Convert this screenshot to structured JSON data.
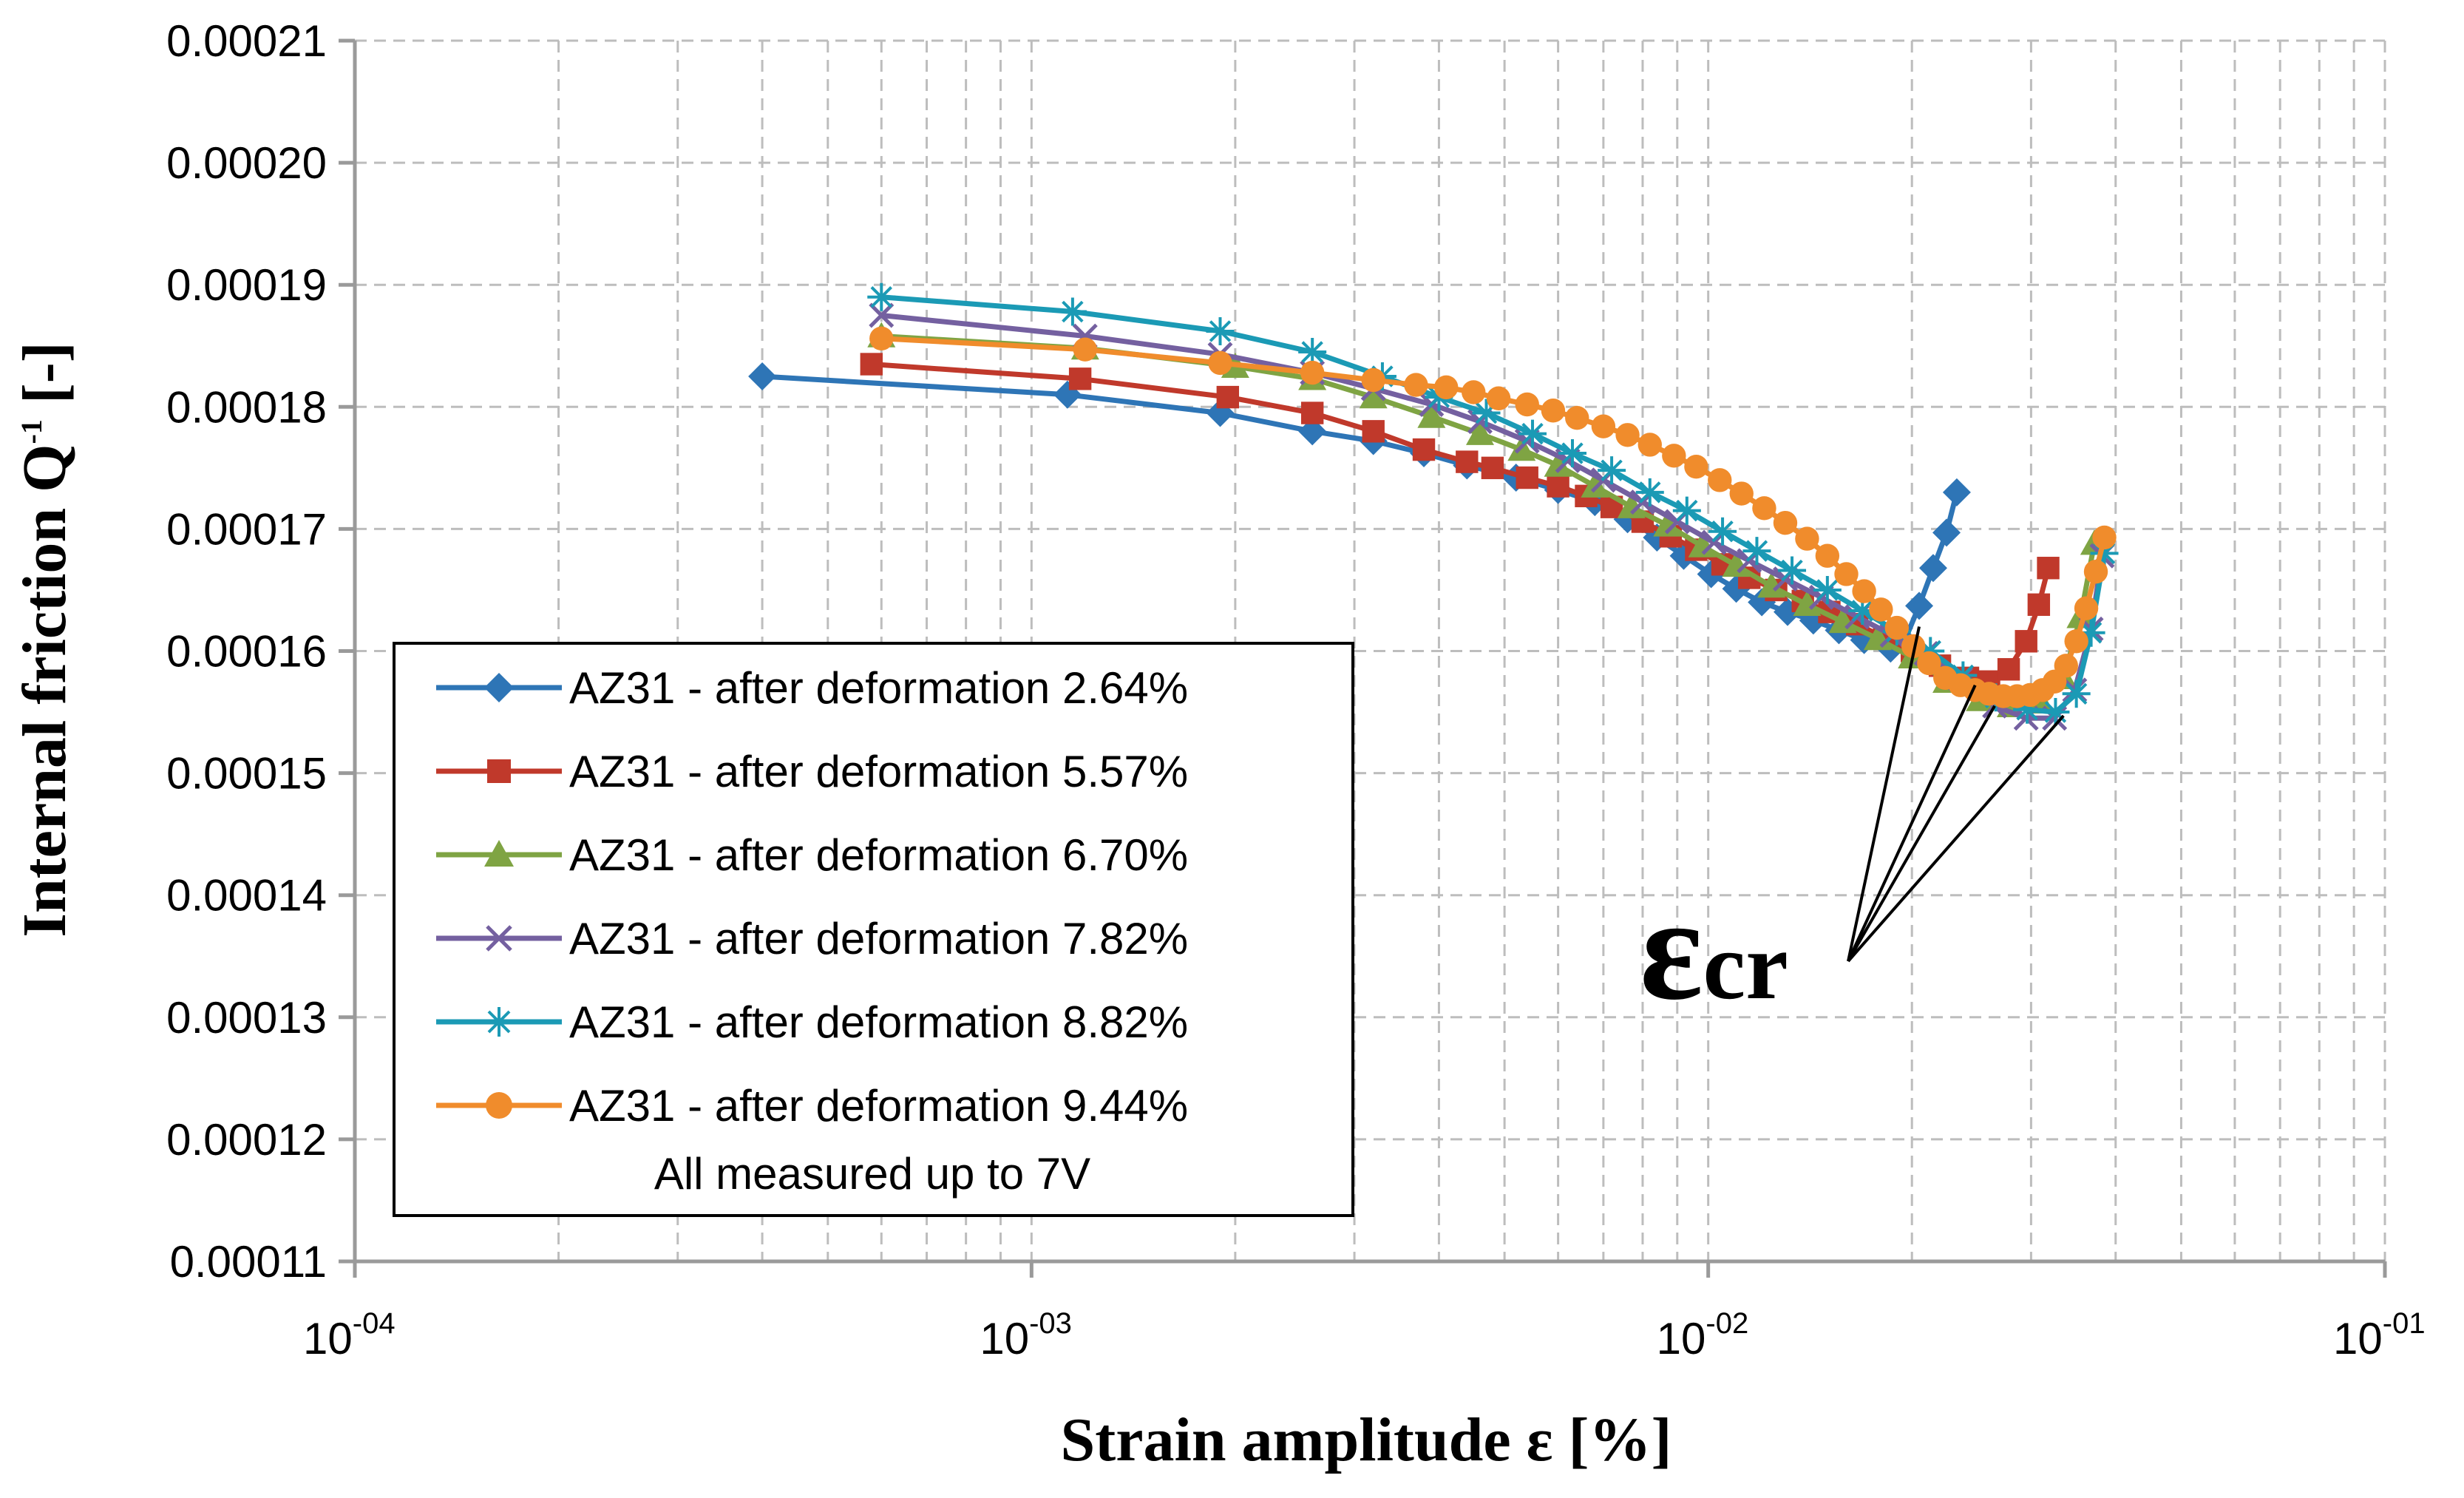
{
  "chart_data": {
    "type": "line",
    "x_scale": "log",
    "xlabel": "Strain amplitude ε [%]",
    "ylabel": "Internal friction Q",
    "ylabel_sup": "-1",
    "ylabel_suffix": " [-]",
    "xlim": [
      0.0001,
      0.1
    ],
    "ylim": [
      0.00011,
      0.00021
    ],
    "y_ticks": [
      "0.00011",
      "0.00012",
      "0.00013",
      "0.00014",
      "0.00015",
      "0.00016",
      "0.00017",
      "0.00018",
      "0.00019",
      "0.00020",
      "0.00021"
    ],
    "x_ticks": [
      {
        "base": "10",
        "exp": "-04"
      },
      {
        "base": "10",
        "exp": "-03"
      },
      {
        "base": "10",
        "exp": "-02"
      },
      {
        "base": "10",
        "exp": "-01"
      }
    ],
    "grid": true,
    "legend_position": "lower-left",
    "legend_note": "All measured up to 7V",
    "annotation_main": "ε",
    "annotation_sub": "cr",
    "series": [
      {
        "name": "AZ31 - after deformation 2.64%",
        "color": "#2E75B6",
        "marker": "diamond",
        "x": [
          0.0004,
          0.00113,
          0.0019,
          0.0026,
          0.0032,
          0.0038,
          0.0044,
          0.0052,
          0.006,
          0.0068,
          0.0076,
          0.0084,
          0.0092,
          0.0101,
          0.011,
          0.012,
          0.0131,
          0.0143,
          0.0156,
          0.017,
          0.0186,
          0.0195,
          0.0205,
          0.0215,
          0.0225,
          0.0233
        ],
        "y": [
          0.0001825,
          0.000181,
          0.0001795,
          0.000178,
          0.0001772,
          0.0001762,
          0.0001752,
          0.0001742,
          0.0001732,
          0.0001722,
          0.0001708,
          0.0001693,
          0.0001678,
          0.0001663,
          0.0001651,
          0.000164,
          0.0001632,
          0.0001625,
          0.0001617,
          0.0001609,
          0.0001602,
          0.0001608,
          0.0001637,
          0.0001668,
          0.0001697,
          0.000173
        ]
      },
      {
        "name": "AZ31 - after deformation 5.57%",
        "color": "#C0392B",
        "marker": "square",
        "x": [
          0.00058,
          0.00118,
          0.00195,
          0.0026,
          0.0032,
          0.0038,
          0.0044,
          0.0048,
          0.0054,
          0.006,
          0.0066,
          0.0072,
          0.008,
          0.0088,
          0.0096,
          0.0105,
          0.0115,
          0.0126,
          0.0138,
          0.0151,
          0.0166,
          0.0182,
          0.02,
          0.022,
          0.0242,
          0.026,
          0.0278,
          0.0295,
          0.0308,
          0.0318
        ],
        "y": [
          0.0001835,
          0.0001823,
          0.0001808,
          0.0001795,
          0.000178,
          0.0001765,
          0.0001755,
          0.000175,
          0.0001742,
          0.0001735,
          0.0001727,
          0.0001718,
          0.0001706,
          0.0001694,
          0.0001683,
          0.0001671,
          0.000166,
          0.000165,
          0.0001641,
          0.0001632,
          0.0001622,
          0.0001611,
          0.00016,
          0.0001588,
          0.0001578,
          0.0001575,
          0.0001585,
          0.0001608,
          0.0001638,
          0.0001668
        ]
      },
      {
        "name": "AZ31 - after deformation 6.70%",
        "color": "#7FA443",
        "marker": "triangle",
        "x": [
          0.0006,
          0.0012,
          0.002,
          0.0026,
          0.0032,
          0.0039,
          0.0046,
          0.0053,
          0.006,
          0.0068,
          0.0077,
          0.0087,
          0.0098,
          0.011,
          0.0124,
          0.014,
          0.0158,
          0.0178,
          0.02,
          0.0225,
          0.0252,
          0.028,
          0.031,
          0.0335,
          0.0355,
          0.0372
        ],
        "y": [
          0.0001858,
          0.0001848,
          0.0001833,
          0.0001823,
          0.0001808,
          0.0001792,
          0.0001778,
          0.0001765,
          0.0001752,
          0.0001735,
          0.0001718,
          0.0001703,
          0.0001686,
          0.000167,
          0.0001653,
          0.0001638,
          0.0001624,
          0.000161,
          0.0001595,
          0.0001575,
          0.000156,
          0.0001555,
          0.0001558,
          0.0001578,
          0.0001628,
          0.0001688
        ]
      },
      {
        "name": "AZ31 - after deformation 7.82%",
        "color": "#7460A0",
        "marker": "x",
        "x": [
          0.0006,
          0.0012,
          0.0019,
          0.0026,
          0.0032,
          0.0039,
          0.0046,
          0.0054,
          0.0062,
          0.007,
          0.008,
          0.009,
          0.0102,
          0.0115,
          0.013,
          0.0147,
          0.0166,
          0.0187,
          0.021,
          0.0236,
          0.0265,
          0.0295,
          0.0325,
          0.0348,
          0.0368,
          0.0382
        ],
        "y": [
          0.0001875,
          0.0001858,
          0.0001843,
          0.0001828,
          0.0001815,
          0.0001802,
          0.0001788,
          0.0001772,
          0.0001756,
          0.000174,
          0.0001722,
          0.0001706,
          0.0001689,
          0.0001674,
          0.0001659,
          0.0001644,
          0.0001628,
          0.0001613,
          0.0001598,
          0.0001577,
          0.0001555,
          0.0001545,
          0.0001545,
          0.0001568,
          0.0001618,
          0.0001678
        ]
      },
      {
        "name": "AZ31 - after deformation 8.82%",
        "color": "#1B9AB5",
        "marker": "star",
        "x": [
          0.0006,
          0.00115,
          0.0019,
          0.0026,
          0.0033,
          0.004,
          0.0047,
          0.0055,
          0.0063,
          0.0072,
          0.0082,
          0.0093,
          0.0105,
          0.0118,
          0.0133,
          0.015,
          0.0169,
          0.019,
          0.0213,
          0.0238,
          0.0266,
          0.0296,
          0.0326,
          0.035,
          0.0368,
          0.0385
        ],
        "y": [
          0.000189,
          0.0001878,
          0.0001862,
          0.0001845,
          0.0001825,
          0.0001808,
          0.0001795,
          0.0001778,
          0.0001762,
          0.0001748,
          0.000173,
          0.0001715,
          0.0001698,
          0.0001682,
          0.0001666,
          0.000165,
          0.0001633,
          0.0001616,
          0.00016,
          0.000158,
          0.0001562,
          0.0001552,
          0.000155,
          0.0001565,
          0.0001615,
          0.000168
        ]
      },
      {
        "name": "AZ31 - after deformation 9.44%",
        "color": "#F08C2C",
        "marker": "circle",
        "x": [
          0.0006,
          0.0012,
          0.0019,
          0.0026,
          0.0032,
          0.0037,
          0.0041,
          0.0045,
          0.0049,
          0.0054,
          0.0059,
          0.0064,
          0.007,
          0.0076,
          0.0082,
          0.0089,
          0.0096,
          0.0104,
          0.0112,
          0.0121,
          0.013,
          0.014,
          0.015,
          0.016,
          0.017,
          0.018,
          0.019,
          0.0201,
          0.0212,
          0.0224,
          0.0236,
          0.0248,
          0.026,
          0.0273,
          0.0286,
          0.0299,
          0.0312,
          0.0325,
          0.0338,
          0.035,
          0.0362,
          0.0374,
          0.0385
        ],
        "y": [
          0.0001856,
          0.0001847,
          0.0001836,
          0.0001828,
          0.0001822,
          0.0001818,
          0.0001816,
          0.0001812,
          0.0001807,
          0.0001802,
          0.0001797,
          0.0001791,
          0.0001784,
          0.0001777,
          0.0001769,
          0.000176,
          0.0001751,
          0.000174,
          0.0001729,
          0.0001717,
          0.0001705,
          0.0001692,
          0.0001678,
          0.0001663,
          0.0001649,
          0.0001634,
          0.0001619,
          0.0001604,
          0.000159,
          0.0001578,
          0.0001572,
          0.0001568,
          0.0001565,
          0.0001563,
          0.0001563,
          0.0001564,
          0.0001568,
          0.0001575,
          0.0001588,
          0.0001608,
          0.0001635,
          0.0001665,
          0.0001693
        ]
      }
    ]
  }
}
